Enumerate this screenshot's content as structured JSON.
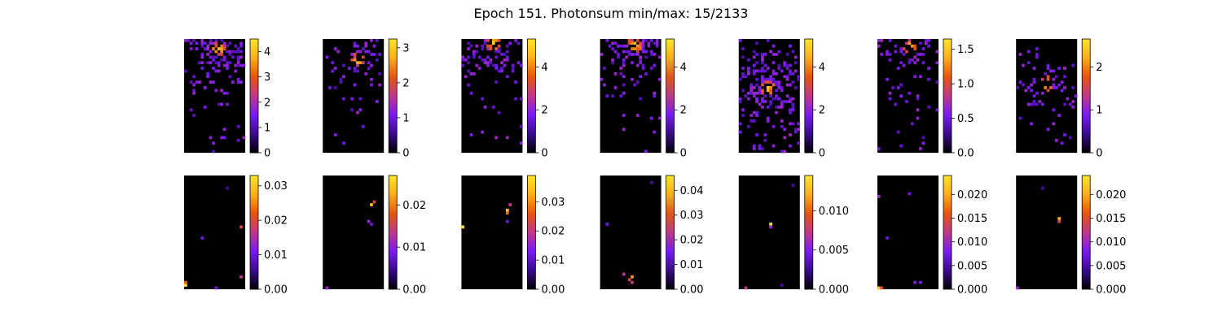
{
  "figure": {
    "title": "Epoch 151. Photonsum min/max: 15/2133"
  },
  "colormap": [
    "#000000",
    "#3a0a8f",
    "#7a1bf2",
    "#c0388a",
    "#e6550d",
    "#fdae1b",
    "#ffe52a"
  ],
  "chart_data": [
    {
      "type": "heatmap",
      "rows": [
        {
          "panels": [
            {
              "vmax": 4.5,
              "ticks": [
                "0",
                "1",
                "2",
                "3",
                "4"
              ],
              "tick_values": [
                0,
                1,
                2,
                3,
                4
              ],
              "hotspot": [
                0.55,
                0.08
              ],
              "spread": 0.28,
              "density": 0.65
            },
            {
              "vmax": 3.25,
              "ticks": [
                "0",
                "1",
                "2",
                "3"
              ],
              "tick_values": [
                0,
                1,
                2,
                3
              ],
              "hotspot": [
                0.55,
                0.18
              ],
              "spread": 0.22,
              "density": 0.45
            },
            {
              "vmax": 5.3,
              "ticks": [
                "0",
                "2",
                "4"
              ],
              "tick_values": [
                0,
                2,
                4
              ],
              "hotspot": [
                0.5,
                0.02
              ],
              "spread": 0.3,
              "density": 0.6
            },
            {
              "vmax": 5.3,
              "ticks": [
                "0",
                "2",
                "4"
              ],
              "tick_values": [
                0,
                2,
                4
              ],
              "hotspot": [
                0.55,
                0.04
              ],
              "spread": 0.3,
              "density": 0.6
            },
            {
              "vmax": 5.3,
              "ticks": [
                "0",
                "2",
                "4"
              ],
              "tick_values": [
                0,
                2,
                4
              ],
              "hotspot": [
                0.45,
                0.42
              ],
              "spread": 0.32,
              "density": 0.7
            },
            {
              "vmax": 1.65,
              "ticks": [
                "0.0",
                "0.5",
                "1.0",
                "1.5"
              ],
              "tick_values": [
                0,
                0.5,
                1.0,
                1.5
              ],
              "hotspot": [
                0.5,
                0.05
              ],
              "spread": 0.35,
              "density": 0.35
            },
            {
              "vmax": 2.65,
              "ticks": [
                "0",
                "1",
                "2"
              ],
              "tick_values": [
                0,
                1,
                2
              ],
              "hotspot": [
                0.45,
                0.38
              ],
              "spread": 0.22,
              "density": 0.45
            }
          ]
        },
        {
          "panels": [
            {
              "vmax": 0.033,
              "ticks": [
                "0.00",
                "0.01",
                "0.02",
                "0.03"
              ],
              "tick_values": [
                0,
                0.01,
                0.02,
                0.03
              ],
              "pixels": [
                [
                  0,
                  0.96,
                  1.0
                ],
                [
                  0,
                  0.95,
                  0.7
                ],
                [
                  0.92,
                  0.45,
                  0.6
                ],
                [
                  0.92,
                  0.88,
                  0.5
                ],
                [
                  0.3,
                  0.55,
                  0.3
                ],
                [
                  0.5,
                  0.98,
                  0.3
                ],
                [
                  0.7,
                  0.1,
                  0.2
                ]
              ]
            },
            {
              "vmax": 0.027,
              "ticks": [
                "0.00",
                "0.01",
                "0.02"
              ],
              "tick_values": [
                0,
                0.01,
                0.02
              ],
              "pixels": [
                [
                  0.78,
                  0.25,
                  0.9
                ],
                [
                  0.82,
                  0.24,
                  0.6
                ],
                [
                  0.75,
                  0.4,
                  0.4
                ],
                [
                  0.8,
                  0.42,
                  0.3
                ],
                [
                  0.05,
                  0.98,
                  0.5
                ],
                [
                  0.08,
                  0.98,
                  0.4
                ]
              ]
            },
            {
              "vmax": 0.039,
              "ticks": [
                "0.00",
                "0.01",
                "0.02",
                "0.03"
              ],
              "tick_values": [
                0,
                0.01,
                0.02,
                0.03
              ],
              "pixels": [
                [
                  0.76,
                  0.3,
                  0.9
                ],
                [
                  0.76,
                  0.32,
                  0.7
                ],
                [
                  0.78,
                  0.26,
                  0.5
                ],
                [
                  0.04,
                  0.44,
                  1.0
                ],
                [
                  0.75,
                  0.41,
                  0.3
                ]
              ]
            },
            {
              "vmax": 0.046,
              "ticks": [
                "0.00",
                "0.01",
                "0.02",
                "0.03",
                "0.04"
              ],
              "tick_values": [
                0,
                0.01,
                0.02,
                0.03,
                0.04
              ],
              "pixels": [
                [
                  0.5,
                  0.9,
                  0.8
                ],
                [
                  0.48,
                  0.92,
                  0.6
                ],
                [
                  0.4,
                  0.86,
                  0.5
                ],
                [
                  0.5,
                  0.95,
                  0.5
                ],
                [
                  0.1,
                  0.43,
                  0.3
                ],
                [
                  0.85,
                  0.05,
                  0.2
                ]
              ]
            },
            {
              "vmax": 0.0145,
              "ticks": [
                "0.000",
                "0.005",
                "0.010"
              ],
              "tick_values": [
                0,
                0.005,
                0.01
              ],
              "pixels": [
                [
                  0.52,
                  0.42,
                  1.0
                ],
                [
                  0.52,
                  0.45,
                  0.4
                ],
                [
                  0.1,
                  0.99,
                  0.5
                ],
                [
                  0.88,
                  0.08,
                  0.2
                ],
                [
                  0.7,
                  0.97,
                  0.2
                ]
              ]
            },
            {
              "vmax": 0.024,
              "ticks": [
                "0.000",
                "0.005",
                "0.010",
                "0.015",
                "0.020"
              ],
              "tick_values": [
                0,
                0.005,
                0.01,
                0.015,
                0.02
              ],
              "pixels": [
                [
                  0.02,
                  0.98,
                  0.9
                ],
                [
                  0.06,
                  0.98,
                  0.6
                ],
                [
                  0.6,
                  0.95,
                  0.35
                ],
                [
                  0.7,
                  0.95,
                  0.35
                ],
                [
                  0.02,
                  0.18,
                  0.4
                ],
                [
                  0.5,
                  0.17,
                  0.3
                ],
                [
                  0.15,
                  0.56,
                  0.3
                ]
              ]
            },
            {
              "vmax": 0.024,
              "ticks": [
                "0.000",
                "0.005",
                "0.010",
                "0.015",
                "0.020"
              ],
              "tick_values": [
                0,
                0.005,
                0.01,
                0.015,
                0.02
              ],
              "pixels": [
                [
                  0.72,
                  0.38,
                  0.85
                ],
                [
                  0.72,
                  0.41,
                  0.6
                ],
                [
                  0.03,
                  0.98,
                  0.4
                ],
                [
                  0.45,
                  0.1,
                  0.2
                ]
              ]
            }
          ]
        }
      ]
    }
  ]
}
